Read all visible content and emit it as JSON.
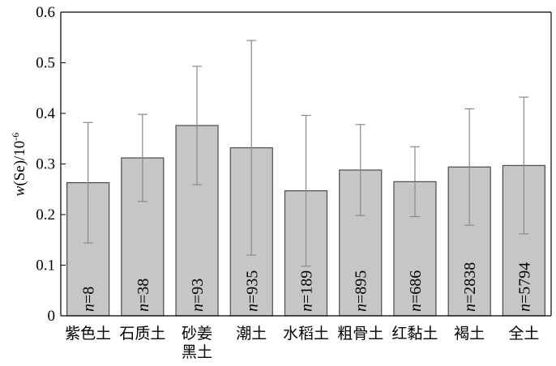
{
  "chart_data": {
    "type": "bar",
    "title": "",
    "xlabel": "",
    "ylabel": "w(Se)/10⁻⁶",
    "ylabel_italic": "w",
    "ylabel_rest": "(Se)/10",
    "ylabel_exp": "-6",
    "ylim": [
      0,
      0.6
    ],
    "yticks": [
      0,
      0.1,
      0.2,
      0.3,
      0.4,
      0.5,
      0.6
    ],
    "ytick_labels": [
      "0",
      "0.1",
      "0.2",
      "0.3",
      "0.4",
      "0.5",
      "0.6"
    ],
    "grid": false,
    "categories": [
      [
        "紫色土"
      ],
      [
        "石质土"
      ],
      [
        "砂姜",
        "黑土"
      ],
      [
        "潮土"
      ],
      [
        "水稻土"
      ],
      [
        "粗骨土"
      ],
      [
        "红黏土"
      ],
      [
        "褐土"
      ],
      [
        "全土"
      ]
    ],
    "values": [
      0.263,
      0.312,
      0.376,
      0.332,
      0.247,
      0.288,
      0.265,
      0.294,
      0.297
    ],
    "error_upper": [
      0.382,
      0.398,
      0.493,
      0.544,
      0.396,
      0.378,
      0.334,
      0.409,
      0.432
    ],
    "error_lower": [
      0.144,
      0.226,
      0.259,
      0.12,
      0.098,
      0.198,
      0.196,
      0.179,
      0.162
    ],
    "n_prefix": "n",
    "n_values": [
      "8",
      "38",
      "93",
      "935",
      "189",
      "895",
      "686",
      "2838",
      "5794"
    ],
    "colors": {
      "bar_fill": "#c6c6c6",
      "bar_edge": "#4a4a4a",
      "errorbar": "#8a8a8a"
    }
  }
}
